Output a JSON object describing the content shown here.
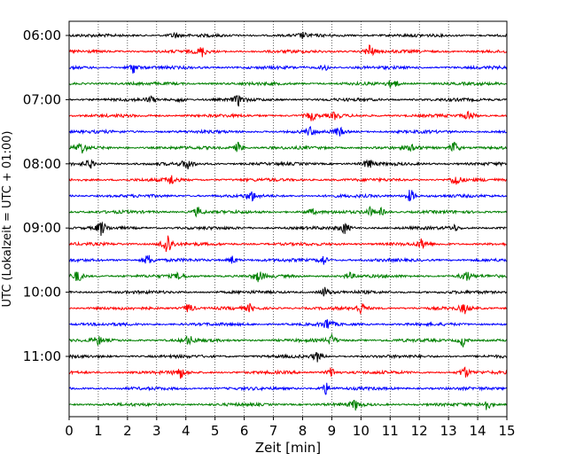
{
  "chart_data": {
    "type": "line",
    "title": "",
    "xlabel": "Zeit  [min]",
    "ylabel": "UTC (Lokalzeit = UTC + 01:00)",
    "xlim": [
      0,
      15
    ],
    "x_ticks": [
      "0",
      "1",
      "2",
      "3",
      "4",
      "5",
      "6",
      "7",
      "8",
      "9",
      "10",
      "11",
      "12",
      "13",
      "14",
      "15"
    ],
    "y_tick_labels": [
      "06:00",
      "07:00",
      "08:00",
      "09:00",
      "10:00",
      "11:00"
    ],
    "trace_interval_minutes": 15,
    "first_trace_time": "06:00",
    "grid": "vertical dotted at every minute",
    "colors": [
      "#000000",
      "#ff0000",
      "#0000ff",
      "#008000"
    ],
    "series": [
      {
        "start": "06:00",
        "color": "#000000",
        "events": [
          [
            3.6,
            0.4
          ],
          [
            8.0,
            0.35
          ]
        ]
      },
      {
        "start": "06:15",
        "color": "#ff0000",
        "events": [
          [
            4.55,
            0.7
          ],
          [
            10.3,
            1.0
          ]
        ]
      },
      {
        "start": "06:30",
        "color": "#0000ff",
        "events": [
          [
            2.2,
            0.8
          ],
          [
            8.75,
            0.5
          ]
        ]
      },
      {
        "start": "06:45",
        "color": "#008000",
        "events": [
          [
            11.1,
            0.8
          ]
        ]
      },
      {
        "start": "07:00",
        "color": "#000000",
        "events": [
          [
            2.8,
            0.4
          ],
          [
            3.8,
            0.4
          ],
          [
            5.8,
            0.7
          ]
        ]
      },
      {
        "start": "07:15",
        "color": "#ff0000",
        "events": [
          [
            8.3,
            0.7
          ],
          [
            9.1,
            0.4
          ],
          [
            13.7,
            0.7
          ]
        ]
      },
      {
        "start": "07:30",
        "color": "#0000ff",
        "events": [
          [
            8.25,
            0.6
          ],
          [
            9.25,
            0.7
          ]
        ]
      },
      {
        "start": "07:45",
        "color": "#008000",
        "events": [
          [
            0.4,
            0.9
          ],
          [
            5.8,
            0.8
          ],
          [
            13.2,
            0.9
          ],
          [
            11.8,
            0.5
          ]
        ]
      },
      {
        "start": "08:00",
        "color": "#000000",
        "events": [
          [
            0.7,
            0.7
          ],
          [
            4.05,
            0.8
          ],
          [
            10.25,
            0.8
          ]
        ]
      },
      {
        "start": "08:15",
        "color": "#ff0000",
        "events": [
          [
            3.5,
            0.7
          ],
          [
            13.25,
            0.9
          ]
        ]
      },
      {
        "start": "08:30",
        "color": "#0000ff",
        "events": [
          [
            6.25,
            0.7
          ],
          [
            11.7,
            1.0
          ]
        ]
      },
      {
        "start": "08:45",
        "color": "#008000",
        "events": [
          [
            4.4,
            0.7
          ],
          [
            10.3,
            0.6
          ],
          [
            10.7,
            0.5
          ],
          [
            8.3,
            0.4
          ]
        ]
      },
      {
        "start": "09:00",
        "color": "#000000",
        "events": [
          [
            1.1,
            1.0
          ],
          [
            9.45,
            0.8
          ],
          [
            13.2,
            0.4
          ]
        ]
      },
      {
        "start": "09:15",
        "color": "#ff0000",
        "events": [
          [
            3.3,
            1.0
          ],
          [
            3.4,
            1.0
          ],
          [
            12.1,
            0.7
          ]
        ]
      },
      {
        "start": "09:30",
        "color": "#0000ff",
        "events": [
          [
            2.7,
            0.8
          ],
          [
            5.6,
            0.6
          ],
          [
            8.7,
            0.7
          ]
        ]
      },
      {
        "start": "09:45",
        "color": "#008000",
        "events": [
          [
            0.3,
            0.9
          ],
          [
            6.5,
            0.8
          ],
          [
            9.6,
            0.5
          ],
          [
            13.6,
            0.8
          ],
          [
            3.8,
            0.6
          ]
        ]
      },
      {
        "start": "10:00",
        "color": "#000000",
        "events": [
          [
            8.75,
            0.7
          ]
        ]
      },
      {
        "start": "10:15",
        "color": "#ff0000",
        "events": [
          [
            4.1,
            0.8
          ],
          [
            6.2,
            0.5
          ],
          [
            10.0,
            0.8
          ],
          [
            13.55,
            0.7
          ]
        ]
      },
      {
        "start": "10:30",
        "color": "#0000ff",
        "events": [
          [
            8.85,
            0.8
          ]
        ]
      },
      {
        "start": "10:45",
        "color": "#008000",
        "events": [
          [
            1.0,
            0.6
          ],
          [
            4.1,
            0.7
          ],
          [
            9.0,
            0.7
          ],
          [
            13.5,
            0.8
          ]
        ]
      },
      {
        "start": "11:00",
        "color": "#000000",
        "events": [
          [
            8.5,
            0.7
          ]
        ]
      },
      {
        "start": "11:15",
        "color": "#ff0000",
        "events": [
          [
            3.8,
            0.8
          ],
          [
            9.0,
            0.8
          ],
          [
            13.55,
            0.8
          ]
        ]
      },
      {
        "start": "11:30",
        "color": "#0000ff",
        "events": [
          [
            8.8,
            0.8
          ]
        ]
      },
      {
        "start": "11:45",
        "color": "#008000",
        "events": [
          [
            9.8,
            0.7
          ],
          [
            14.3,
            0.8
          ]
        ]
      }
    ]
  }
}
